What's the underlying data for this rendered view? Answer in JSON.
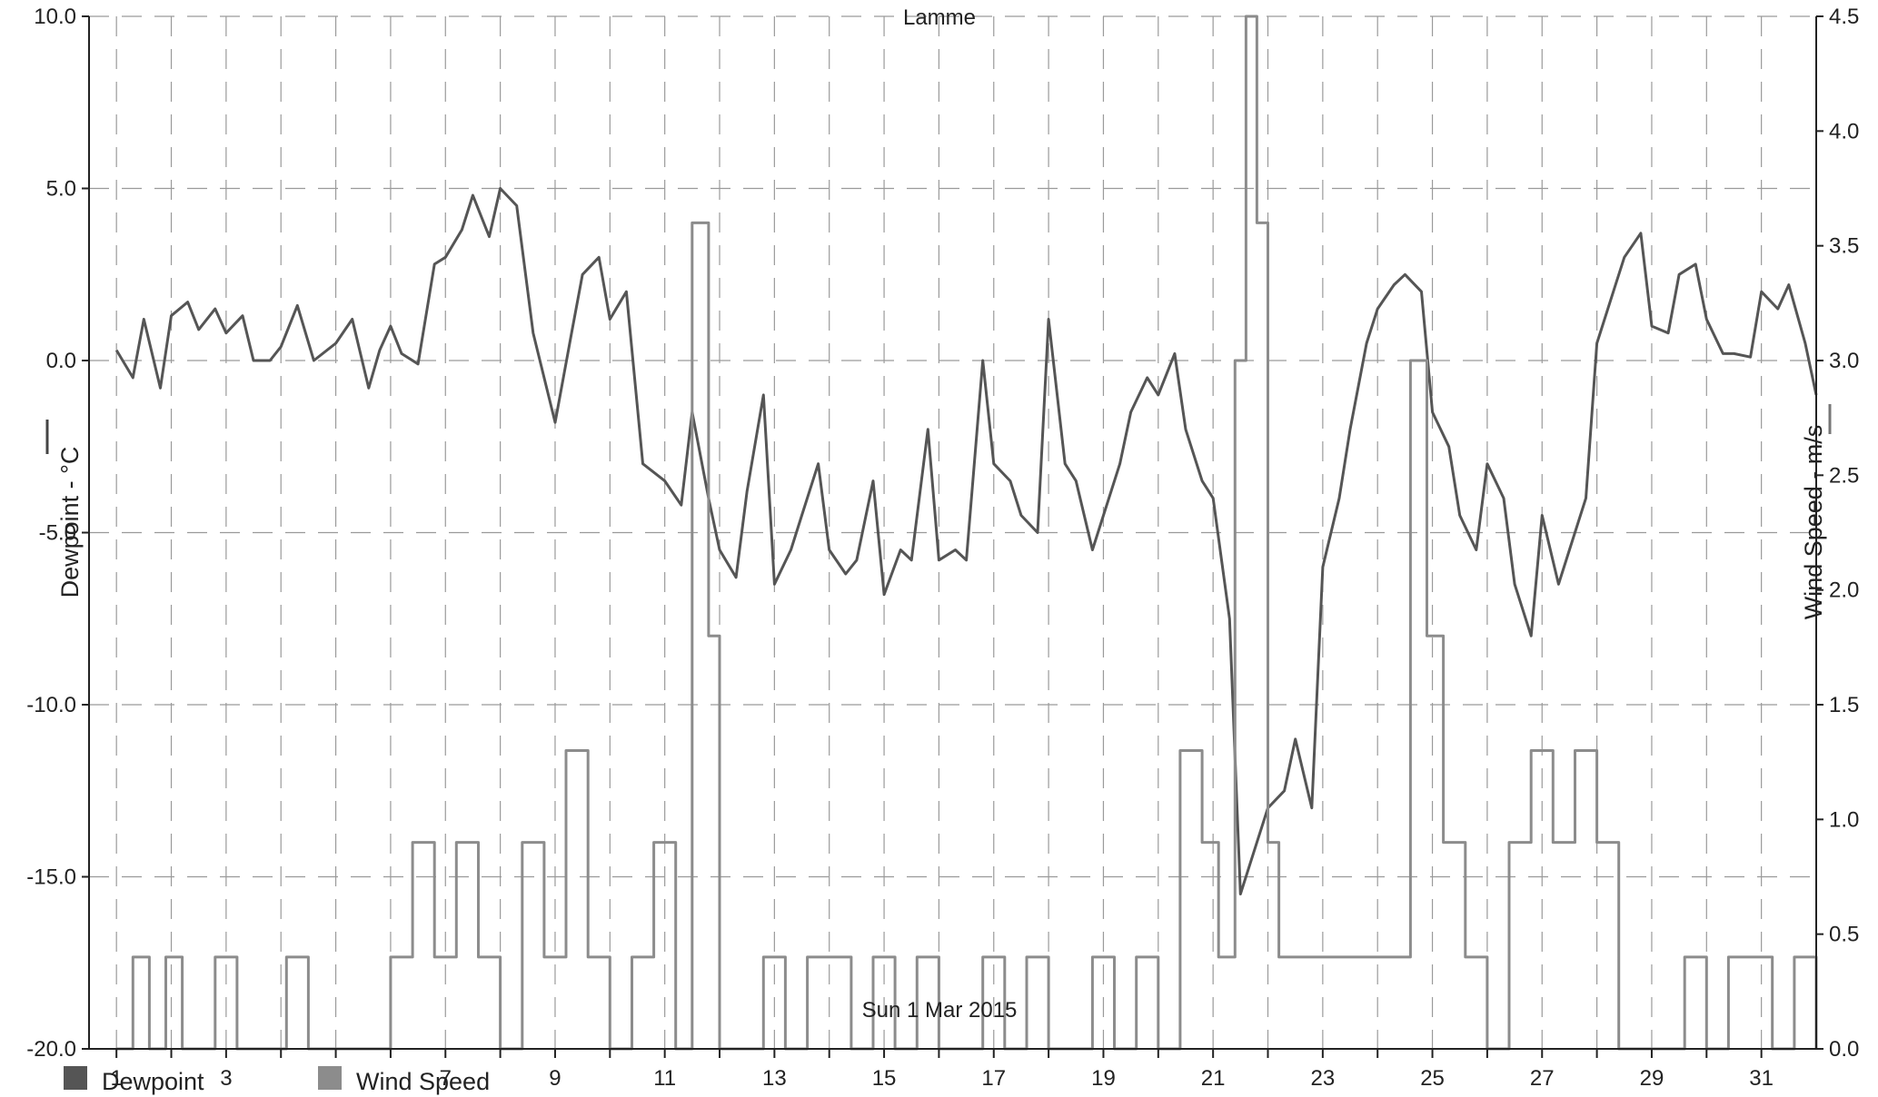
{
  "chart_data": {
    "type": "line",
    "title": "Lamme",
    "x_axis": {
      "min": 0.5,
      "max": 32.0,
      "tick_labels": [
        "1",
        "3",
        "5",
        "7",
        "9",
        "11",
        "13",
        "15",
        "17",
        "19",
        "21",
        "23",
        "25",
        "27",
        "29",
        "31"
      ],
      "date_caption": "Sun 1 Mar 2015",
      "grid": true
    },
    "y_left": {
      "label": "Dewpoint - °C",
      "min": -20,
      "max": 10,
      "ticks": [
        "10.0",
        "5.0",
        "0.0",
        "-5.0",
        "-10.0",
        "-15.0",
        "-20.0"
      ],
      "grid": true
    },
    "y_right": {
      "label": "Wind Speed - m/s",
      "min": 0,
      "max": 4.5,
      "ticks": [
        "4.5",
        "4.0",
        "3.5",
        "3.0",
        "2.5",
        "2.0",
        "1.5",
        "1.0",
        "0.5",
        "0.0"
      ]
    },
    "legend_position": "bottom-left",
    "series": [
      {
        "name": "Dewpoint",
        "axis": "left",
        "color": "#555555",
        "x": [
          1.0,
          1.3,
          1.5,
          1.8,
          2.0,
          2.3,
          2.5,
          2.8,
          3.0,
          3.3,
          3.5,
          3.8,
          4.0,
          4.3,
          4.6,
          5.0,
          5.3,
          5.6,
          5.8,
          6.0,
          6.2,
          6.5,
          6.8,
          7.0,
          7.3,
          7.5,
          7.8,
          8.0,
          8.3,
          8.6,
          9.0,
          9.3,
          9.5,
          9.8,
          10.0,
          10.3,
          10.6,
          11.0,
          11.3,
          11.5,
          11.8,
          12.0,
          12.3,
          12.5,
          12.8,
          13.0,
          13.3,
          13.5,
          13.8,
          14.0,
          14.3,
          14.5,
          14.8,
          15.0,
          15.3,
          15.5,
          15.8,
          16.0,
          16.3,
          16.5,
          16.8,
          17.0,
          17.3,
          17.5,
          17.8,
          18.0,
          18.3,
          18.5,
          18.8,
          19.0,
          19.3,
          19.5,
          19.8,
          20.0,
          20.3,
          20.5,
          20.8,
          21.0,
          21.3,
          21.5,
          21.8,
          22.0,
          22.3,
          22.5,
          22.8,
          23.0,
          23.3,
          23.5,
          23.8,
          24.0,
          24.3,
          24.5,
          24.8,
          25.0,
          25.3,
          25.5,
          25.8,
          26.0,
          26.3,
          26.5,
          26.8,
          27.0,
          27.3,
          27.5,
          27.8,
          28.0,
          28.3,
          28.5,
          28.8,
          29.0,
          29.3,
          29.5,
          29.8,
          30.0,
          30.3,
          30.5,
          30.8,
          31.0,
          31.3,
          31.5,
          31.8,
          32.0
        ],
        "values": [
          0.3,
          -0.5,
          1.2,
          -0.8,
          1.3,
          1.7,
          0.9,
          1.5,
          0.8,
          1.3,
          0.0,
          0.0,
          0.4,
          1.6,
          0.0,
          0.5,
          1.2,
          -0.8,
          0.3,
          1.0,
          0.2,
          -0.1,
          2.8,
          3.0,
          3.8,
          4.8,
          3.6,
          5.0,
          4.5,
          0.8,
          -1.8,
          0.8,
          2.5,
          3.0,
          1.2,
          2.0,
          -3.0,
          -3.5,
          -4.2,
          -1.5,
          -4.0,
          -5.5,
          -6.3,
          -3.8,
          -1.0,
          -6.5,
          -5.5,
          -4.5,
          -3.0,
          -5.5,
          -6.2,
          -5.8,
          -3.5,
          -6.8,
          -5.5,
          -5.8,
          -2.0,
          -5.8,
          -5.5,
          -5.8,
          0.0,
          -3.0,
          -3.5,
          -4.5,
          -5.0,
          1.2,
          -3.0,
          -3.5,
          -5.5,
          -4.5,
          -3.0,
          -1.5,
          -0.5,
          -1.0,
          0.2,
          -2.0,
          -3.5,
          -4.0,
          -7.5,
          -15.5,
          -14.0,
          -13.0,
          -12.5,
          -11.0,
          -13.0,
          -6.0,
          -4.0,
          -2.0,
          0.5,
          1.5,
          2.2,
          2.5,
          2.0,
          -1.5,
          -2.5,
          -4.5,
          -5.5,
          -3.0,
          -4.0,
          -6.5,
          -8.0,
          -4.5,
          -6.5,
          -5.5,
          -4.0,
          0.5,
          2.0,
          3.0,
          3.7,
          1.0,
          0.8,
          2.5,
          2.8,
          1.2,
          0.2,
          0.2,
          0.1,
          2.0,
          1.5,
          2.2,
          0.5,
          -1.0
        ]
      },
      {
        "name": "Wind Speed",
        "axis": "right",
        "color": "#8c8c8c",
        "x": [
          1.0,
          1.3,
          1.6,
          1.9,
          2.2,
          2.5,
          2.8,
          3.2,
          3.5,
          3.8,
          4.1,
          4.5,
          4.8,
          5.2,
          5.6,
          6.0,
          6.4,
          6.8,
          7.2,
          7.6,
          8.0,
          8.4,
          8.8,
          9.2,
          9.6,
          10.0,
          10.4,
          10.8,
          11.2,
          11.5,
          11.8,
          12.0,
          12.4,
          12.8,
          13.2,
          13.6,
          14.0,
          14.4,
          14.8,
          15.2,
          15.6,
          16.0,
          16.4,
          16.8,
          17.2,
          17.6,
          18.0,
          18.4,
          18.8,
          19.2,
          19.6,
          20.0,
          20.4,
          20.8,
          21.1,
          21.4,
          21.6,
          21.8,
          22.0,
          22.2,
          22.6,
          23.0,
          23.4,
          23.8,
          24.2,
          24.6,
          24.9,
          25.2,
          25.6,
          26.0,
          26.4,
          26.8,
          27.2,
          27.6,
          28.0,
          28.4,
          28.8,
          29.2,
          29.6,
          30.0,
          30.4,
          30.8,
          31.2,
          31.6,
          32.0
        ],
        "values": [
          0.0,
          0.4,
          0.0,
          0.4,
          0.0,
          0.0,
          0.4,
          0.0,
          0.0,
          0.0,
          0.4,
          0.0,
          0.0,
          0.0,
          0.0,
          0.4,
          0.9,
          0.4,
          0.9,
          0.4,
          0.0,
          0.9,
          0.4,
          1.3,
          0.4,
          0.0,
          0.4,
          0.9,
          0.0,
          3.6,
          1.8,
          0.0,
          0.0,
          0.4,
          0.0,
          0.4,
          0.4,
          0.0,
          0.4,
          0.0,
          0.4,
          0.0,
          0.0,
          0.4,
          0.0,
          0.4,
          0.0,
          0.0,
          0.4,
          0.0,
          0.4,
          0.0,
          1.3,
          0.9,
          0.4,
          3.0,
          4.5,
          3.6,
          0.9,
          0.4,
          0.4,
          0.4,
          0.4,
          0.4,
          0.4,
          3.0,
          1.8,
          0.9,
          0.4,
          0.0,
          0.9,
          1.3,
          0.9,
          1.3,
          0.9,
          0.0,
          0.0,
          0.0,
          0.4,
          0.0,
          0.4,
          0.4,
          0.0,
          0.4,
          0.0
        ]
      }
    ]
  }
}
